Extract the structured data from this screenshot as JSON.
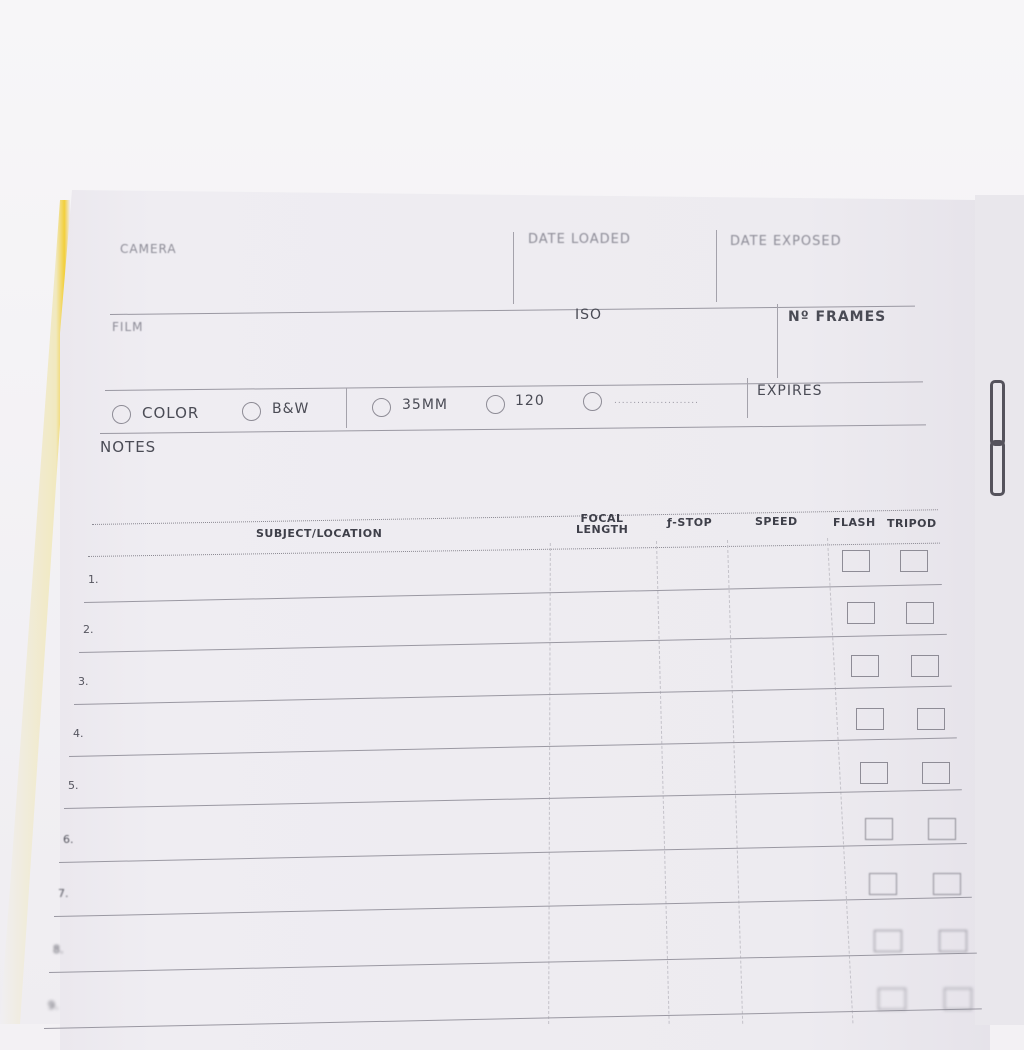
{
  "header": {
    "camera": "CAMERA",
    "date_loaded": "DATE LOADED",
    "date_exposed": "DATE EXPOSED",
    "film": "FILM",
    "iso": "ISO",
    "frames": "Nº FRAMES",
    "expires": "EXPIRES",
    "notes": "NOTES"
  },
  "options": {
    "color": "COLOR",
    "bw": "B&W",
    "f35": "35MM",
    "f120": "120",
    "other": "......................"
  },
  "table": {
    "subject": "SUBJECT/LOCATION",
    "focal": "FOCAL LENGTH",
    "fstop": "ƒ-STOP",
    "speed": "SPEED",
    "flash": "FLASH",
    "tripod": "TRIPOD"
  },
  "rows": [
    "1.",
    "2.",
    "3.",
    "4.",
    "5.",
    "6.",
    "7.",
    "8.",
    "9."
  ]
}
